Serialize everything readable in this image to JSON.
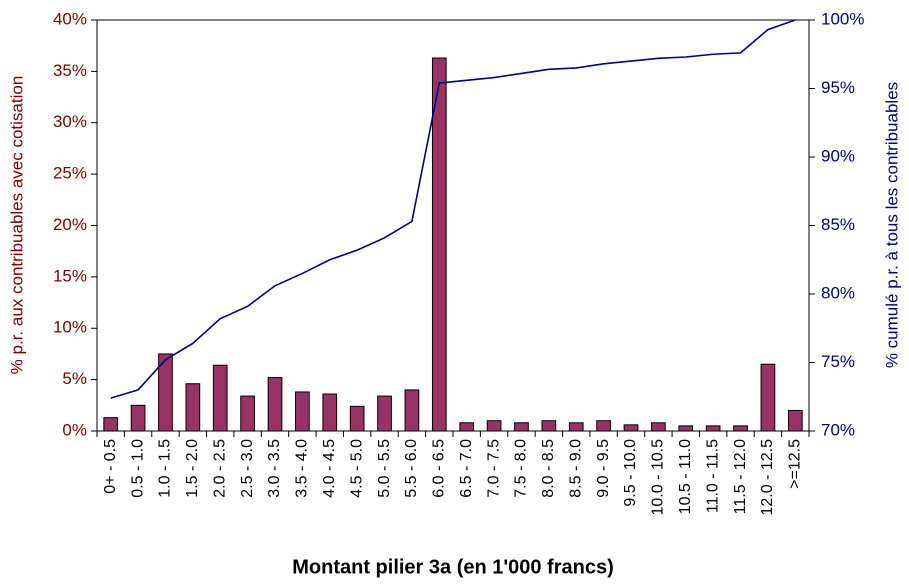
{
  "chart_data": {
    "type": "bar",
    "xlabel": "Montant pilier 3a (en 1'000 francs)",
    "ylabel": "%  p.r. aux contribuables avec cotisation",
    "y2label": "% cumulé p.r. à tous les contribuables",
    "categories": [
      "0+ - 0.5",
      "0.5 - 1.0",
      "1.0 - 1.5",
      "1.5 - 2.0",
      "2.0 - 2.5",
      "2.5 - 3.0",
      "3.0 - 3.5",
      "3.5 - 4.0",
      "4.0 - 4.5",
      "4.5 - 5.0",
      "5.0 - 5.5",
      "5.5 - 6.0",
      "6.0 - 6.5",
      "6.5 - 7.0",
      "7.0 - 7.5",
      "7.5 - 8.0",
      "8.0 - 8.5",
      "8.5 - 9.0",
      "9.0 - 9.5",
      "9.5 - 10.0",
      "10.0 - 10.5",
      "10.5 - 11.0",
      "11.0 - 11.5",
      "11.5 - 12.0",
      "12.0 - 12.5",
      ">=12.5"
    ],
    "series": [
      {
        "type": "bar",
        "color": "#993366",
        "values": [
          1.3,
          2.5,
          7.5,
          4.6,
          6.4,
          3.4,
          5.2,
          3.8,
          3.6,
          2.4,
          3.4,
          4.0,
          36.3,
          0.8,
          1.0,
          0.8,
          1.0,
          0.8,
          1.0,
          0.6,
          0.8,
          0.5,
          0.5,
          0.5,
          6.5,
          2.0
        ]
      },
      {
        "type": "line",
        "axis": "y2",
        "color": "#000080",
        "values": [
          72.4,
          73.0,
          75.2,
          76.4,
          78.2,
          79.1,
          80.6,
          81.5,
          82.5,
          83.2,
          84.1,
          85.3,
          95.4,
          95.6,
          95.8,
          96.1,
          96.4,
          96.5,
          96.8,
          97.0,
          97.2,
          97.3,
          97.5,
          97.6,
          99.3,
          100
        ]
      }
    ],
    "ylim": [
      0,
      40
    ],
    "yticks": [
      {
        "value": 0,
        "label": "0%"
      },
      {
        "value": 5,
        "label": "5%"
      },
      {
        "value": 10,
        "label": "10%"
      },
      {
        "value": 15,
        "label": "15%"
      },
      {
        "value": 20,
        "label": "20%"
      },
      {
        "value": 25,
        "label": "25%"
      },
      {
        "value": 30,
        "label": "30%"
      },
      {
        "value": 35,
        "label": "35%"
      },
      {
        "value": 40,
        "label": "40%"
      }
    ],
    "y2lim": [
      70,
      100
    ],
    "y2ticks": [
      {
        "value": 70,
        "label": "70%"
      },
      {
        "value": 75,
        "label": "75%"
      },
      {
        "value": 80,
        "label": "80%"
      },
      {
        "value": 85,
        "label": "85%"
      },
      {
        "value": 90,
        "label": "90%"
      },
      {
        "value": 95,
        "label": "95%"
      },
      {
        "value": 100,
        "label": "100%"
      }
    ]
  }
}
